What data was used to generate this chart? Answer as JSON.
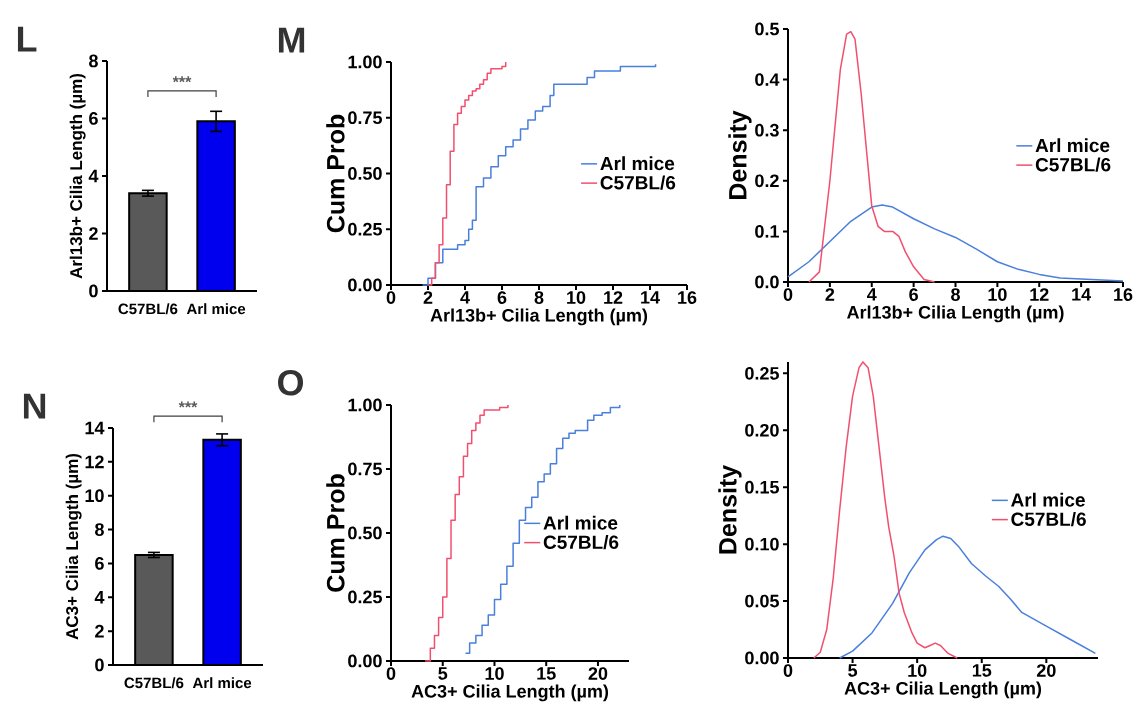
{
  "chart_data": [
    {
      "type": "bar",
      "title": "L",
      "ylabel": "Arl13b+ Cilia Length (µm)",
      "categories": [
        "C57BL/6",
        "Arl mice"
      ],
      "values": [
        3.4,
        5.9
      ],
      "errors": [
        0.1,
        0.35
      ],
      "colors": [
        "#595959",
        "#0000ee"
      ],
      "ylim": [
        0,
        8
      ],
      "yticks": [
        0,
        2,
        4,
        6,
        8
      ],
      "annotations": [
        "***"
      ]
    },
    {
      "type": "step",
      "title": "M",
      "xlabel": "Arl13b+ Cilia Length (µm)",
      "ylabel": "Cum Prob",
      "legend": "right",
      "xlim": [
        0,
        16
      ],
      "xticks": [
        0,
        2,
        4,
        6,
        8,
        10,
        12,
        14,
        16
      ],
      "ylim": [
        0,
        1
      ],
      "yticks": [
        {
          "value": 0,
          "label": "0.00"
        },
        {
          "value": 0.25,
          "label": "0.25"
        },
        {
          "value": 0.5,
          "label": "0.50"
        },
        {
          "value": 0.75,
          "label": "0.75"
        },
        {
          "value": 1,
          "label": "1.00"
        }
      ],
      "series": [
        {
          "name": "Arl mice",
          "color": "#4a7fdc",
          "x": [
            1.7,
            2.0,
            2.4,
            2.8,
            3.2,
            3.6,
            4.0,
            4.2,
            4.4,
            4.6,
            5.0,
            5.4,
            5.8,
            6.2,
            6.6,
            7.0,
            7.4,
            7.8,
            8.2,
            8.6,
            8.8,
            9.6,
            10.2,
            10.6,
            11.0,
            11.6,
            12.4,
            13.0,
            14.3
          ],
          "values": [
            0,
            0.03,
            0.1,
            0.16,
            0.16,
            0.18,
            0.2,
            0.25,
            0.29,
            0.44,
            0.48,
            0.53,
            0.58,
            0.62,
            0.65,
            0.7,
            0.74,
            0.78,
            0.8,
            0.85,
            0.9,
            0.9,
            0.9,
            0.93,
            0.96,
            0.96,
            0.98,
            0.98,
            0.99
          ]
        },
        {
          "name": "C57BL/6",
          "color": "#f0506e",
          "x": [
            2.0,
            2.2,
            2.4,
            2.6,
            2.8,
            3.0,
            3.2,
            3.4,
            3.6,
            3.8,
            4.0,
            4.2,
            4.4,
            4.6,
            4.8,
            5.0,
            5.2,
            5.4,
            5.8,
            6.0,
            6.2
          ],
          "values": [
            0,
            0.03,
            0.1,
            0.18,
            0.3,
            0.45,
            0.6,
            0.72,
            0.77,
            0.8,
            0.83,
            0.85,
            0.87,
            0.88,
            0.9,
            0.92,
            0.95,
            0.97,
            0.97,
            0.98,
            1.0
          ]
        }
      ]
    },
    {
      "type": "line",
      "xlabel": "Arl13b+ Cilia Length (µm)",
      "ylabel": "Density",
      "legend": "right",
      "xlim": [
        0,
        16
      ],
      "xticks": [
        0,
        2,
        4,
        6,
        8,
        10,
        12,
        14,
        16
      ],
      "ylim": [
        0,
        0.5
      ],
      "yticks": [
        {
          "value": 0,
          "label": "0.0"
        },
        0.1,
        0.2,
        0.3,
        0.4,
        0.5
      ],
      "series": [
        {
          "name": "Arl mice",
          "color": "#4a7fdc",
          "x": [
            0,
            1,
            2,
            3,
            4,
            4.5,
            5,
            6,
            7,
            8,
            9,
            10,
            11,
            12,
            13,
            14,
            15,
            16
          ],
          "values": [
            0.01,
            0.04,
            0.08,
            0.12,
            0.148,
            0.152,
            0.148,
            0.125,
            0.105,
            0.088,
            0.065,
            0.04,
            0.025,
            0.015,
            0.008,
            0.006,
            0.004,
            0.002
          ]
        },
        {
          "name": "C57BL/6",
          "color": "#f0506e",
          "x": [
            1.0,
            1.5,
            2.0,
            2.5,
            2.8,
            3.0,
            3.2,
            3.5,
            4.0,
            4.3,
            4.6,
            5.0,
            5.3,
            5.6,
            6.0,
            6.5,
            7.0
          ],
          "values": [
            0,
            0.02,
            0.2,
            0.42,
            0.49,
            0.495,
            0.48,
            0.37,
            0.15,
            0.11,
            0.1,
            0.1,
            0.09,
            0.06,
            0.03,
            0.005,
            0
          ]
        }
      ]
    },
    {
      "type": "bar",
      "title": "N",
      "ylabel": "AC3+ Cilia Length (µm)",
      "categories": [
        "C57BL/6",
        "Arl mice"
      ],
      "values": [
        6.5,
        13.3
      ],
      "errors": [
        0.15,
        0.35
      ],
      "colors": [
        "#595959",
        "#0000ee"
      ],
      "ylim": [
        0,
        14
      ],
      "yticks": [
        0,
        2,
        4,
        6,
        8,
        10,
        12,
        14
      ],
      "annotations": [
        "***"
      ]
    },
    {
      "type": "step",
      "title": "O",
      "xlabel": "AC3+ Cilia Length (µm)",
      "ylabel": "Cum Prob",
      "legend": "right",
      "xlim": [
        0,
        23
      ],
      "xticks": [
        0,
        5,
        10,
        15,
        20
      ],
      "ylim": [
        0,
        1
      ],
      "yticks": [
        {
          "value": 0,
          "label": "0.00"
        },
        {
          "value": 0.25,
          "label": "0.25"
        },
        {
          "value": 0.5,
          "label": "0.50"
        },
        {
          "value": 0.75,
          "label": "0.75"
        },
        {
          "value": 1,
          "label": "1.00"
        }
      ],
      "series": [
        {
          "name": "Arl mice",
          "color": "#4a7fdc",
          "x": [
            7.2,
            7.6,
            8.2,
            8.8,
            9.4,
            10.0,
            10.6,
            11.2,
            11.8,
            12.4,
            13.0,
            13.6,
            14.2,
            14.8,
            15.4,
            16.0,
            16.6,
            17.2,
            17.8,
            18.4,
            19.0,
            19.6,
            20.4,
            21.2,
            22.1
          ],
          "values": [
            0.03,
            0.07,
            0.1,
            0.14,
            0.18,
            0.24,
            0.3,
            0.37,
            0.46,
            0.55,
            0.6,
            0.64,
            0.7,
            0.73,
            0.77,
            0.83,
            0.87,
            0.89,
            0.9,
            0.9,
            0.94,
            0.96,
            0.97,
            0.99,
            1.0
          ]
        },
        {
          "name": "C57BL/6",
          "color": "#f0506e",
          "x": [
            3.3,
            3.8,
            4.2,
            4.6,
            5.0,
            5.4,
            5.8,
            6.2,
            6.6,
            7.0,
            7.4,
            7.8,
            8.2,
            8.6,
            9.0,
            9.5,
            10.5,
            11.3
          ],
          "values": [
            0,
            0.05,
            0.1,
            0.17,
            0.25,
            0.4,
            0.55,
            0.65,
            0.72,
            0.8,
            0.85,
            0.9,
            0.93,
            0.96,
            0.98,
            0.98,
            0.99,
            1.0
          ]
        }
      ]
    },
    {
      "type": "line",
      "xlabel": "AC3+ Cilia Length (µm)",
      "ylabel": "Density",
      "legend": "right",
      "xlim": [
        0,
        24
      ],
      "xticks": [
        0,
        5,
        10,
        15,
        20
      ],
      "ylim": [
        0,
        0.26
      ],
      "yticks": [
        {
          "value": 0,
          "label": "0.00"
        },
        {
          "value": 0.05,
          "label": "0.05"
        },
        {
          "value": 0.1,
          "label": "0.10"
        },
        {
          "value": 0.15,
          "label": "0.15"
        },
        {
          "value": 0.2,
          "label": "0.20"
        },
        {
          "value": 0.25,
          "label": "0.25"
        }
      ],
      "series": [
        {
          "name": "Arl mice",
          "color": "#4a7fdc",
          "x": [
            4,
            5,
            6.5,
            8.1,
            9.4,
            10.6,
            11.5,
            12,
            12.6,
            13.2,
            14.2,
            15.3,
            16.3,
            17.2,
            18.1,
            20,
            21.9,
            23.8
          ],
          "values": [
            0,
            0.006,
            0.022,
            0.048,
            0.075,
            0.095,
            0.104,
            0.107,
            0.105,
            0.098,
            0.083,
            0.072,
            0.063,
            0.052,
            0.04,
            0.028,
            0.016,
            0.004
          ]
        },
        {
          "name": "C57BL/6",
          "color": "#f0506e",
          "x": [
            2,
            2.5,
            3,
            3.5,
            4,
            4.5,
            5,
            5.5,
            5.8,
            6.2,
            6.6,
            7,
            7.5,
            7.8,
            8.2,
            8.6,
            9,
            9.6,
            10,
            10.6,
            11,
            11.4,
            11.8,
            12.4,
            13.1
          ],
          "values": [
            0,
            0.005,
            0.025,
            0.07,
            0.13,
            0.185,
            0.23,
            0.255,
            0.26,
            0.255,
            0.23,
            0.19,
            0.14,
            0.115,
            0.09,
            0.057,
            0.04,
            0.022,
            0.013,
            0.009,
            0.011,
            0.013,
            0.011,
            0.004,
            0
          ]
        }
      ]
    }
  ]
}
